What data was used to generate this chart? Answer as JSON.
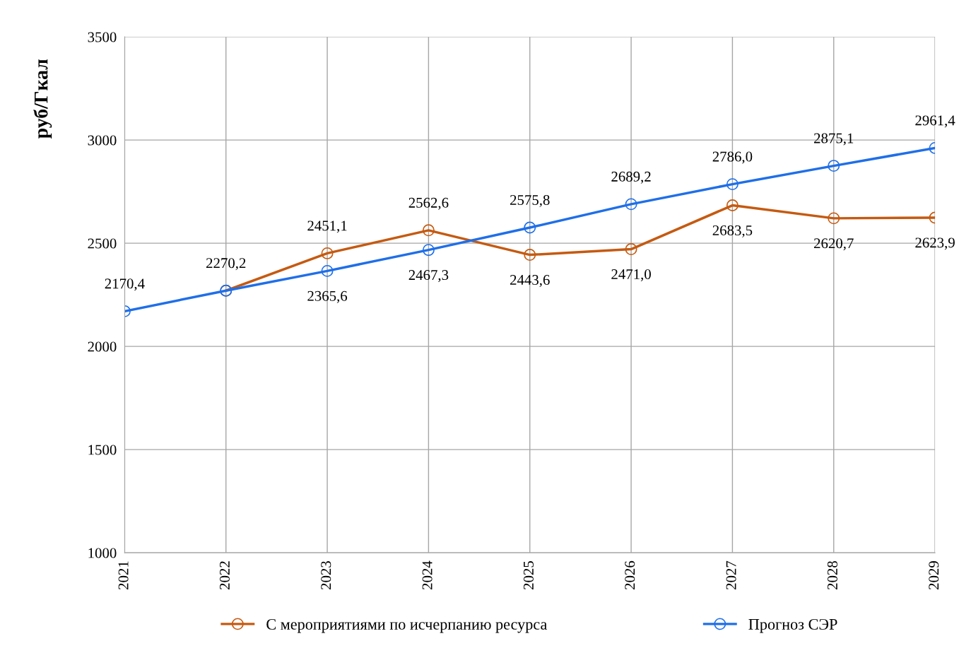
{
  "chart_data": {
    "type": "line",
    "ylabel": "руб/Гкал",
    "categories": [
      "2021",
      "2022",
      "2023",
      "2024",
      "2025",
      "2026",
      "2027",
      "2028",
      "2029"
    ],
    "series": [
      {
        "name": "С мероприятиями по исчерпанию ресурса",
        "color": "#c55a11",
        "values": [
          null,
          2270.2,
          2451.1,
          2562.6,
          2443.6,
          2471.0,
          2683.5,
          2620.7,
          2623.9
        ],
        "value_labels": [
          null,
          null,
          "2451,1",
          "2562,6",
          "2443,6",
          "2471,0",
          "2683,5",
          "2620,7",
          "2623,9"
        ]
      },
      {
        "name": "Прогноз СЭР",
        "color": "#1f6fe8",
        "values": [
          2170.4,
          2270.2,
          2365.6,
          2467.3,
          2575.8,
          2689.2,
          2786.0,
          2875.1,
          2961.4
        ],
        "value_labels": [
          "2170,4",
          "2270,2",
          "2365,6",
          "2467,3",
          "2575,8",
          "2689,2",
          "2786,0",
          "2875,1",
          "2961,4"
        ]
      }
    ],
    "ylim": [
      1000,
      3500
    ],
    "yticks": [
      1000,
      1500,
      2000,
      2500,
      3000,
      3500
    ],
    "grid": true,
    "legend": "bottom",
    "marker": "circle",
    "line_style": "solid"
  }
}
